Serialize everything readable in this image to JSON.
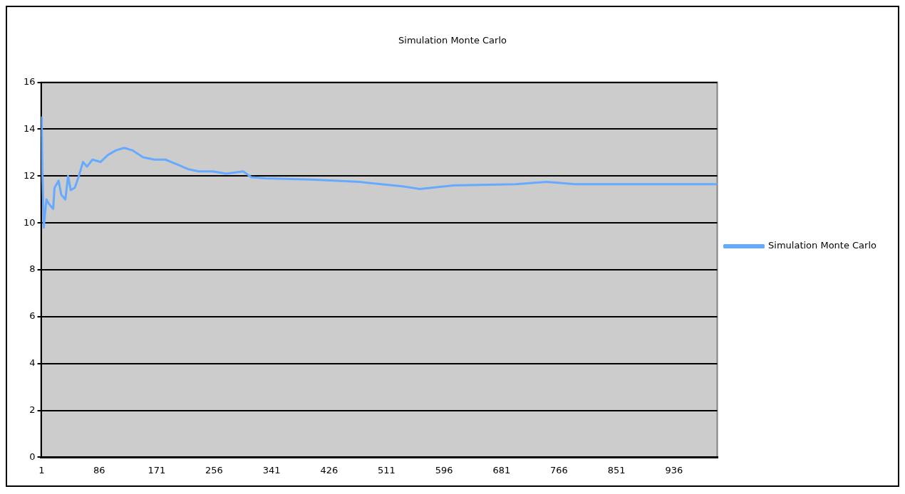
{
  "chart_data": {
    "type": "line",
    "title": "Simulation Monte Carlo",
    "xlim": [
      0,
      1000
    ],
    "xticks": [
      1,
      86,
      171,
      256,
      341,
      426,
      511,
      596,
      681,
      766,
      851,
      936
    ],
    "ylim": [
      0,
      16
    ],
    "yticks": [
      0,
      2,
      4,
      6,
      8,
      10,
      12,
      14,
      16
    ],
    "grid": "y",
    "legend": "right",
    "marker": "none",
    "line_style": "solid",
    "series": [
      {
        "name": "Simulation Monte Carlo",
        "color": "#66aaff",
        "x": [
          1,
          2,
          4,
          8,
          12,
          18,
          20,
          26,
          30,
          36,
          40,
          44,
          50,
          56,
          62,
          68,
          76,
          88,
          99,
          111,
          123,
          135,
          151,
          168,
          184,
          201,
          217,
          233,
          254,
          274,
          299,
          311,
          331,
          400,
          471,
          537,
          560,
          610,
          702,
          748,
          790,
          1000
        ],
        "values": [
          14.5,
          12.3,
          9.8,
          11.0,
          10.8,
          10.6,
          11.5,
          11.8,
          11.2,
          11.0,
          12.0,
          11.4,
          11.5,
          12.0,
          12.6,
          12.4,
          12.7,
          12.6,
          12.9,
          13.1,
          13.2,
          13.1,
          12.8,
          12.7,
          12.7,
          12.5,
          12.3,
          12.2,
          12.2,
          12.1,
          12.2,
          11.95,
          11.9,
          11.85,
          11.75,
          11.55,
          11.45,
          11.6,
          11.65,
          11.75,
          11.65,
          11.65
        ]
      }
    ]
  }
}
